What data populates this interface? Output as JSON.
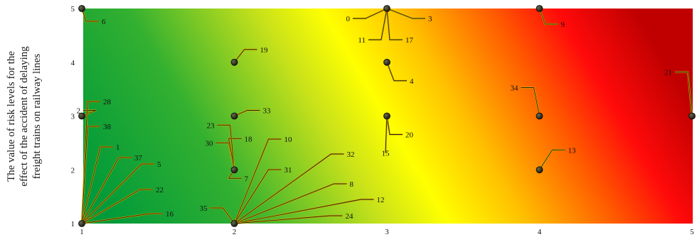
{
  "chart_data": {
    "type": "scatter",
    "ylabel_lines": [
      "The value of risk levels for the",
      "effect of the accident of delaying",
      "freight trains on railway lines"
    ],
    "xlabel": "",
    "x_ticks": [
      "1",
      "2",
      "3",
      "4",
      "5"
    ],
    "y_ticks": [
      "1",
      "2",
      "3",
      "4",
      "5"
    ],
    "xlim": [
      1,
      5
    ],
    "ylim": [
      1,
      5
    ],
    "background": "risk gradient: green (low) to yellow to red (high)",
    "colors": {
      "low": "#009a3a",
      "mid": "#ffff00",
      "high": "#c80000",
      "point": "#2b2b1f",
      "leader": "#c8a800"
    },
    "points": [
      {
        "label": "0",
        "x": 3,
        "y": 5
      },
      {
        "label": "3",
        "x": 3,
        "y": 5
      },
      {
        "label": "11",
        "x": 3,
        "y": 5
      },
      {
        "label": "17",
        "x": 3,
        "y": 5
      },
      {
        "label": "6",
        "x": 1,
        "y": 5
      },
      {
        "label": "9",
        "x": 4,
        "y": 5
      },
      {
        "label": "19",
        "x": 2,
        "y": 4
      },
      {
        "label": "4",
        "x": 3,
        "y": 4
      },
      {
        "label": "21",
        "x": 5,
        "y": 3
      },
      {
        "label": "34",
        "x": 4,
        "y": 3
      },
      {
        "label": "33",
        "x": 2,
        "y": 3
      },
      {
        "label": "20",
        "x": 3,
        "y": 3
      },
      {
        "label": "15",
        "x": 3,
        "y": 3
      },
      {
        "label": "2",
        "x": 1,
        "y": 3
      },
      {
        "label": "23",
        "x": 2,
        "y": 2
      },
      {
        "label": "30",
        "x": 2,
        "y": 2
      },
      {
        "label": "18",
        "x": 2,
        "y": 2
      },
      {
        "label": "7",
        "x": 2,
        "y": 2
      },
      {
        "label": "13",
        "x": 4,
        "y": 2
      },
      {
        "label": "28",
        "x": 1,
        "y": 1
      },
      {
        "label": "38",
        "x": 1,
        "y": 1
      },
      {
        "label": "1",
        "x": 1,
        "y": 1
      },
      {
        "label": "37",
        "x": 1,
        "y": 1
      },
      {
        "label": "5",
        "x": 1,
        "y": 1
      },
      {
        "label": "22",
        "x": 1,
        "y": 1
      },
      {
        "label": "16",
        "x": 1,
        "y": 1
      },
      {
        "label": "10",
        "x": 2,
        "y": 1
      },
      {
        "label": "31",
        "x": 2,
        "y": 1
      },
      {
        "label": "32",
        "x": 2,
        "y": 1
      },
      {
        "label": "8",
        "x": 2,
        "y": 1
      },
      {
        "label": "12",
        "x": 2,
        "y": 1
      },
      {
        "label": "24",
        "x": 2,
        "y": 1
      },
      {
        "label": "35",
        "x": 2,
        "y": 1
      }
    ]
  }
}
